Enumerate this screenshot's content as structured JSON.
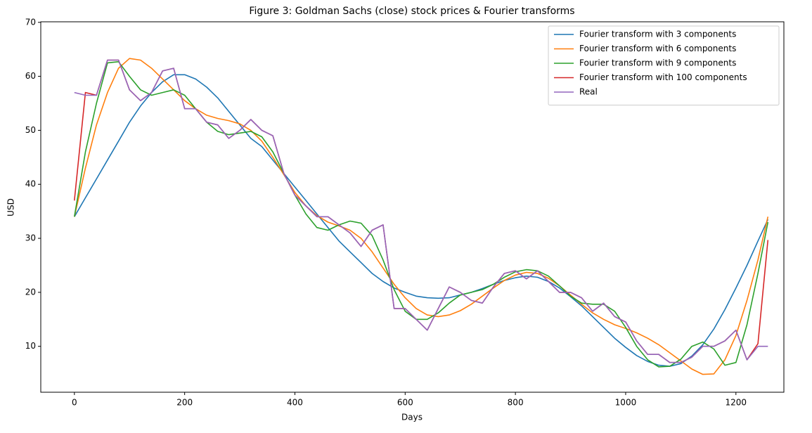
{
  "chart_data": {
    "type": "line",
    "title": "Figure 3: Goldman Sachs (close) stock prices & Fourier transforms",
    "xlabel": "Days",
    "ylabel": "USD",
    "xlim": [
      -61,
      1287
    ],
    "ylim": [
      1.5,
      70.1
    ],
    "xticks": [
      0,
      200,
      400,
      600,
      800,
      1000,
      1200
    ],
    "yticks": [
      10,
      20,
      30,
      40,
      50,
      60,
      70
    ],
    "legend": "upper right",
    "x": [
      0,
      20,
      40,
      60,
      80,
      100,
      120,
      140,
      160,
      180,
      200,
      220,
      240,
      260,
      280,
      300,
      320,
      340,
      360,
      380,
      400,
      420,
      440,
      460,
      480,
      500,
      520,
      540,
      560,
      580,
      600,
      620,
      640,
      660,
      680,
      700,
      720,
      740,
      760,
      780,
      800,
      820,
      840,
      860,
      880,
      900,
      920,
      940,
      960,
      980,
      1000,
      1020,
      1040,
      1060,
      1080,
      1100,
      1120,
      1140,
      1160,
      1180,
      1200,
      1220,
      1240,
      1258
    ],
    "series": [
      {
        "name": "Fourier transform with 3 components",
        "color": "#1f77b4",
        "values": [
          34,
          37.5,
          41,
          44.5,
          48,
          51.5,
          54.5,
          57,
          59,
          60.3,
          60.3,
          59.5,
          58,
          56,
          53.5,
          51,
          48.5,
          47,
          44.5,
          42,
          39.5,
          37,
          34.5,
          32,
          29.5,
          27.5,
          25.5,
          23.5,
          22,
          20.8,
          20,
          19.3,
          19,
          18.9,
          19,
          19.5,
          20,
          20.7,
          21.5,
          22.2,
          22.7,
          23,
          22.8,
          22,
          20.8,
          19.2,
          17.5,
          15.5,
          13.5,
          11.5,
          9.8,
          8.3,
          7.2,
          6.5,
          6.3,
          6.8,
          8.2,
          10.3,
          13.2,
          16.8,
          20.8,
          25,
          29.5,
          33.5
        ]
      },
      {
        "name": "Fourier transform with 6 components",
        "color": "#ff7f0e",
        "values": [
          34,
          43,
          51,
          57,
          61.5,
          63.3,
          63,
          61.5,
          59.5,
          57.5,
          55.5,
          54,
          52.8,
          52.2,
          51.8,
          51.2,
          50,
          48,
          45,
          41.8,
          38.5,
          36,
          34.2,
          33,
          32.3,
          31.5,
          30,
          27.5,
          24.5,
          21.5,
          19,
          17,
          15.8,
          15.5,
          15.8,
          16.6,
          17.8,
          19.3,
          20.8,
          22.2,
          23.2,
          23.7,
          23.5,
          22.6,
          21.2,
          19.5,
          17.8,
          16.2,
          15,
          14,
          13.3,
          12.5,
          11.5,
          10.3,
          8.8,
          7.3,
          5.8,
          4.8,
          4.9,
          7.5,
          12,
          18.5,
          26,
          34
        ]
      },
      {
        "name": "Fourier transform with 9 components",
        "color": "#2ca02c",
        "values": [
          34,
          46,
          55,
          62.5,
          62.7,
          60,
          57.5,
          56.5,
          57,
          57.5,
          56.5,
          54,
          51.5,
          49.8,
          49.2,
          49.5,
          49.8,
          48.8,
          46,
          42,
          38,
          34.5,
          32,
          31.5,
          32.5,
          33.2,
          32.8,
          30.5,
          26,
          20.5,
          16.5,
          15,
          15,
          16.2,
          18,
          19.5,
          20,
          20.5,
          21.5,
          22.8,
          23.8,
          24.2,
          24,
          23,
          21.2,
          19.3,
          18,
          17.8,
          17.8,
          16.5,
          13.5,
          10,
          7.5,
          6.2,
          6.3,
          7.6,
          10,
          10.8,
          9.5,
          6.5,
          7,
          14,
          23.5,
          33
        ]
      },
      {
        "name": "Fourier transform with 100 components",
        "color": "#d62728",
        "values": [
          37,
          57,
          56.5,
          63,
          63,
          57.5,
          55.5,
          57,
          61,
          61.5,
          54,
          54,
          51.5,
          51,
          48.5,
          50,
          52,
          50,
          49,
          42,
          38,
          36,
          34,
          34,
          32.5,
          31,
          28.5,
          31.5,
          32.5,
          17,
          17,
          15,
          13,
          17,
          21,
          20,
          18.5,
          18,
          21,
          23.5,
          24,
          22.5,
          24,
          22,
          20,
          20,
          19,
          16.5,
          18,
          15.5,
          14.5,
          11,
          8.5,
          8.5,
          7,
          7,
          8,
          10,
          10,
          11,
          13,
          7.5,
          10.5,
          29.7
        ]
      },
      {
        "name": "Real",
        "color": "#9467bd",
        "values": [
          57,
          56.5,
          56.5,
          63,
          63,
          57.5,
          55.5,
          57,
          61,
          61.5,
          54,
          54,
          51.5,
          51,
          48.5,
          50,
          52,
          50,
          49,
          42,
          38,
          36,
          34,
          34,
          32.5,
          31,
          28.5,
          31.5,
          32.5,
          17,
          17,
          15,
          13,
          17,
          21,
          20,
          18.5,
          18,
          21,
          23.5,
          24,
          22.5,
          24,
          22,
          20,
          20,
          19,
          16.5,
          18,
          15.5,
          14.5,
          11,
          8.5,
          8.5,
          7,
          7,
          8,
          10,
          10,
          11,
          13,
          7.5,
          10,
          10
        ]
      }
    ]
  }
}
